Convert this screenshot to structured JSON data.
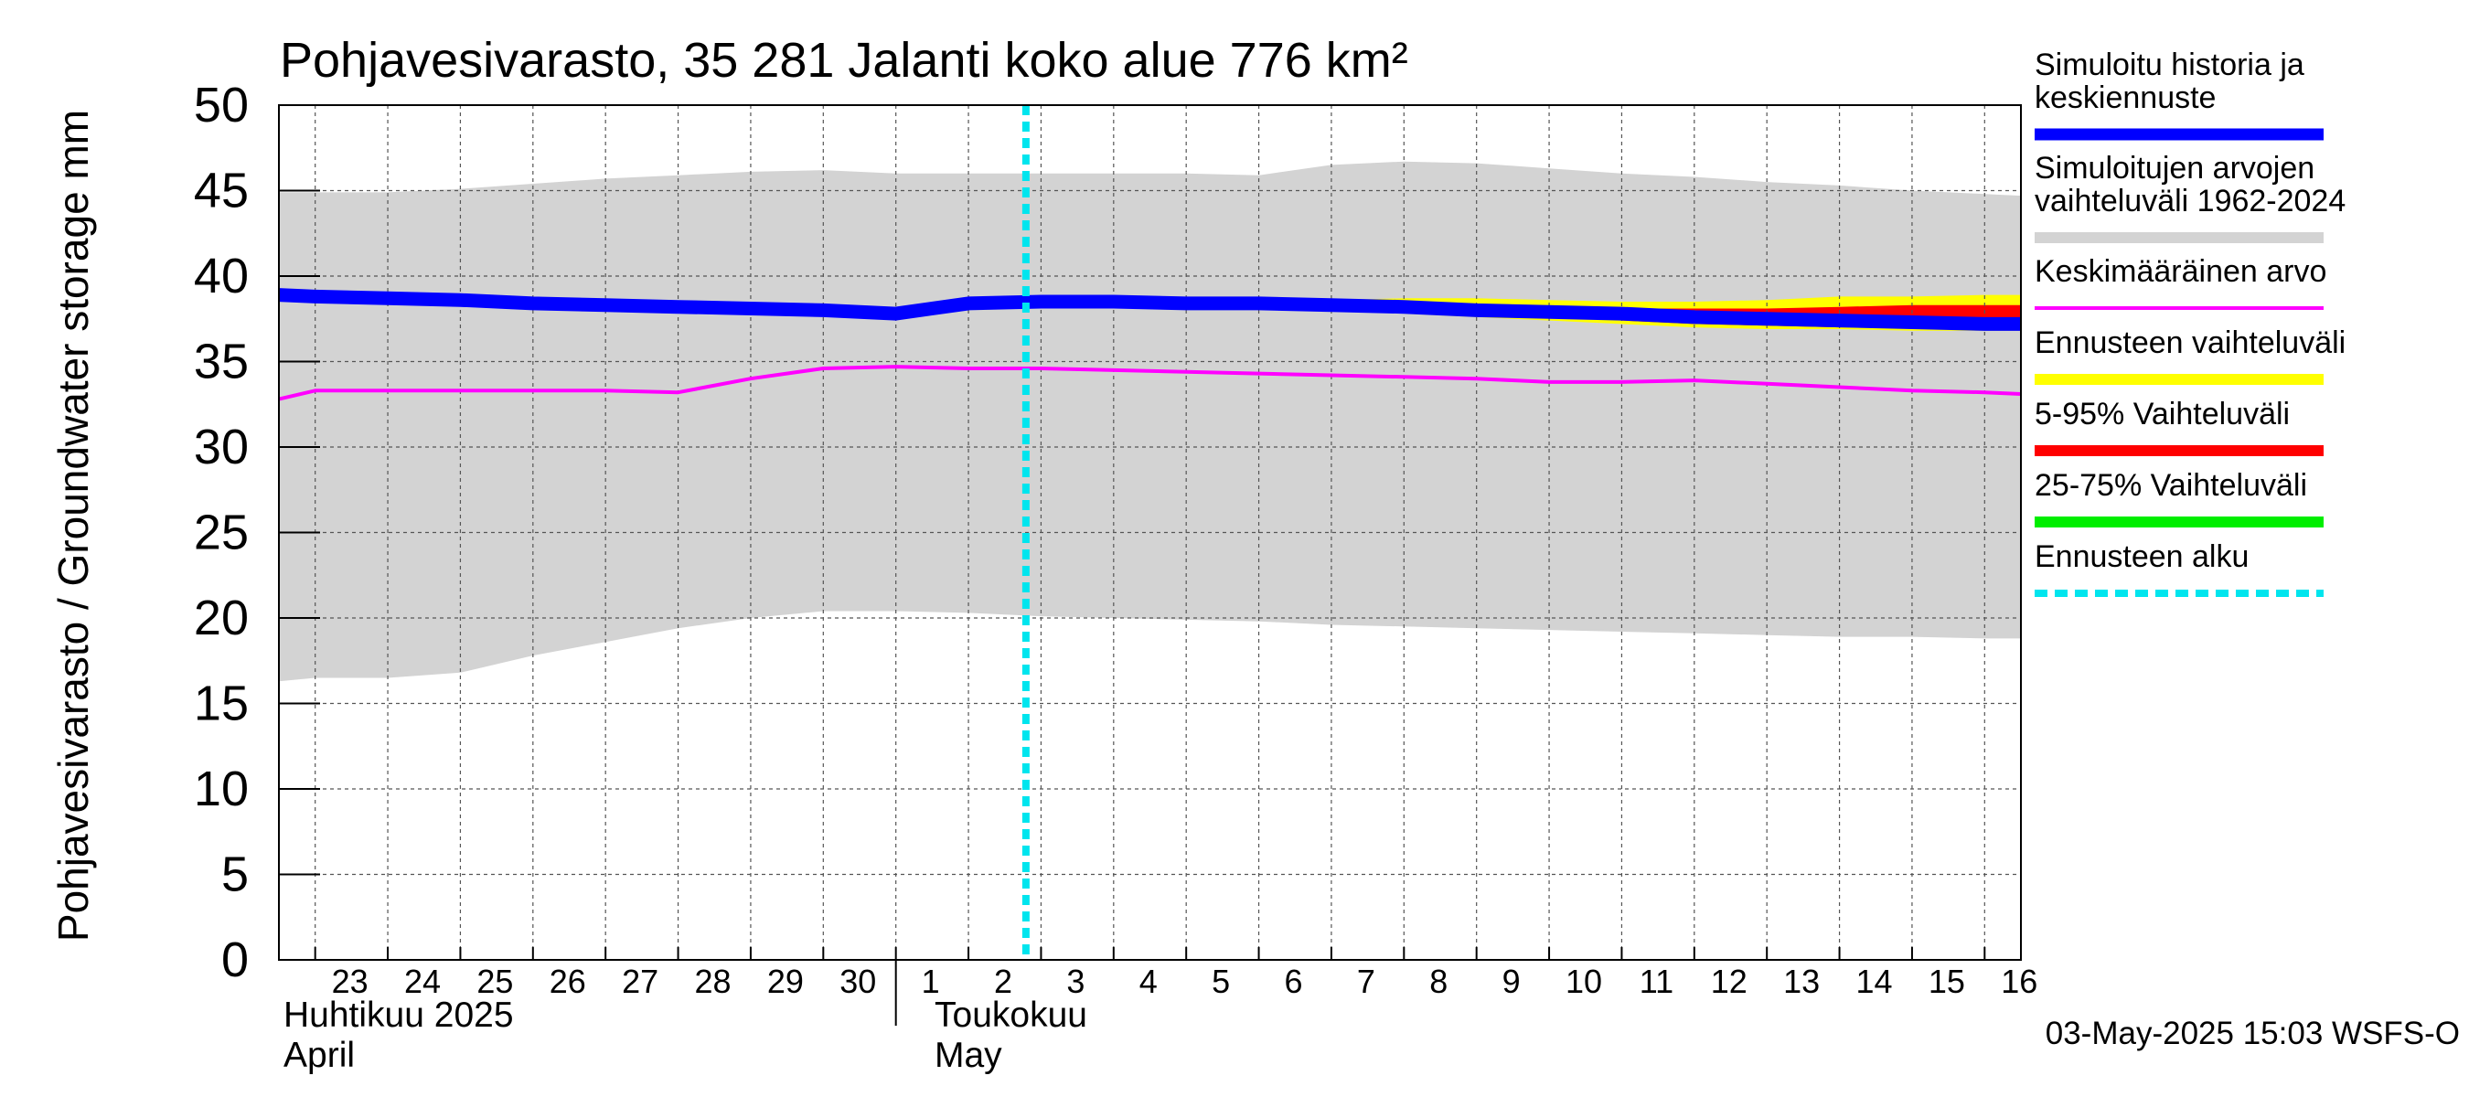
{
  "chart_data": {
    "type": "line",
    "title": "Pohjavesivarasto, 35 281 Jalanti koko alue 776 km²",
    "ylabel": "Pohjavesivarasto / Groundwater storage   mm",
    "ylim": [
      0,
      50
    ],
    "yticks": [
      0,
      5,
      10,
      15,
      20,
      25,
      30,
      35,
      40,
      45,
      50
    ],
    "xlim": [
      "2025-04-22T12:00",
      "2025-05-16T12:00"
    ],
    "xticks": [
      {
        "date": "2025-04-23",
        "label": "23"
      },
      {
        "date": "2025-04-24",
        "label": "24"
      },
      {
        "date": "2025-04-25",
        "label": "25"
      },
      {
        "date": "2025-04-26",
        "label": "26"
      },
      {
        "date": "2025-04-27",
        "label": "27"
      },
      {
        "date": "2025-04-28",
        "label": "28"
      },
      {
        "date": "2025-04-29",
        "label": "29"
      },
      {
        "date": "2025-04-30",
        "label": "30"
      },
      {
        "date": "2025-05-01",
        "label": "1"
      },
      {
        "date": "2025-05-02",
        "label": "2"
      },
      {
        "date": "2025-05-03",
        "label": "3"
      },
      {
        "date": "2025-05-04",
        "label": "4"
      },
      {
        "date": "2025-05-05",
        "label": "5"
      },
      {
        "date": "2025-05-06",
        "label": "6"
      },
      {
        "date": "2025-05-07",
        "label": "7"
      },
      {
        "date": "2025-05-08",
        "label": "8"
      },
      {
        "date": "2025-05-09",
        "label": "9"
      },
      {
        "date": "2025-05-10",
        "label": "10"
      },
      {
        "date": "2025-05-11",
        "label": "11"
      },
      {
        "date": "2025-05-12",
        "label": "12"
      },
      {
        "date": "2025-05-13",
        "label": "13"
      },
      {
        "date": "2025-05-14",
        "label": "14"
      },
      {
        "date": "2025-05-15",
        "label": "15"
      },
      {
        "date": "2025-05-16",
        "label": "16"
      }
    ],
    "month_labels": [
      {
        "line1": "Huhtikuu  2025",
        "line2": "April"
      },
      {
        "line1": "Toukokuu",
        "line2": "May"
      }
    ],
    "month_boundary": "2025-05-01",
    "grid": true,
    "legend_position": "right",
    "series": [
      {
        "name": "Simuloitujen arvojen vaihteluväli 1962-2024",
        "kind": "band",
        "color": "#d3d3d3",
        "dates": [
          "2025-04-22T12:00",
          "2025-04-23",
          "2025-04-24",
          "2025-04-25",
          "2025-04-26",
          "2025-04-27",
          "2025-04-28",
          "2025-04-29",
          "2025-04-30",
          "2025-05-01",
          "2025-05-02",
          "2025-05-03",
          "2025-05-04",
          "2025-05-05",
          "2025-05-06",
          "2025-05-07",
          "2025-05-08",
          "2025-05-09",
          "2025-05-10",
          "2025-05-11",
          "2025-05-12",
          "2025-05-13",
          "2025-05-14",
          "2025-05-15",
          "2025-05-16",
          "2025-05-16T12:00"
        ],
        "upper": [
          44.9,
          44.9,
          44.9,
          45.1,
          45.4,
          45.7,
          45.9,
          46.1,
          46.2,
          46.0,
          46.0,
          46.0,
          46.0,
          46.0,
          45.9,
          46.5,
          46.7,
          46.6,
          46.3,
          46.0,
          45.8,
          45.5,
          45.3,
          45.0,
          44.8,
          44.7
        ],
        "lower": [
          16.3,
          16.5,
          16.5,
          16.8,
          17.8,
          18.6,
          19.4,
          20.0,
          20.4,
          20.4,
          20.3,
          20.1,
          20.0,
          19.9,
          19.8,
          19.6,
          19.5,
          19.4,
          19.3,
          19.2,
          19.1,
          19.0,
          18.9,
          18.9,
          18.8,
          18.8
        ]
      },
      {
        "name": "Ennusteen vaihteluväli",
        "kind": "band",
        "color": "#ffff00",
        "dates": [
          "2025-05-05",
          "2025-05-06",
          "2025-05-07",
          "2025-05-08",
          "2025-05-09",
          "2025-05-10",
          "2025-05-11",
          "2025-05-12",
          "2025-05-13",
          "2025-05-14",
          "2025-05-15",
          "2025-05-16",
          "2025-05-16T12:00"
        ],
        "upper": [
          38.4,
          38.5,
          38.6,
          38.7,
          38.7,
          38.6,
          38.5,
          38.5,
          38.6,
          38.8,
          38.8,
          38.9,
          38.9
        ],
        "lower": [
          38.3,
          38.2,
          38.0,
          37.8,
          37.6,
          37.4,
          37.2,
          37.0,
          36.9,
          36.9,
          36.8,
          36.8,
          36.8
        ]
      },
      {
        "name": "5-95% Vaihteluväli",
        "kind": "band",
        "color": "#ff0000",
        "dates": [
          "2025-05-09",
          "2025-05-10",
          "2025-05-11",
          "2025-05-12",
          "2025-05-13",
          "2025-05-14",
          "2025-05-15",
          "2025-05-16",
          "2025-05-16T12:00"
        ],
        "upper": [
          38.2,
          38.1,
          38.1,
          38.1,
          38.1,
          38.2,
          38.3,
          38.3,
          38.3
        ],
        "lower": [
          38.0,
          37.7,
          37.4,
          37.2,
          37.1,
          37.0,
          37.0,
          36.9,
          36.9
        ]
      },
      {
        "name": "Keskimääräinen arvo",
        "kind": "line",
        "color": "#ff00ff",
        "dates": [
          "2025-04-22T12:00",
          "2025-04-23",
          "2025-04-24",
          "2025-04-25",
          "2025-04-26",
          "2025-04-27",
          "2025-04-28",
          "2025-04-29",
          "2025-04-30",
          "2025-05-01",
          "2025-05-02",
          "2025-05-03",
          "2025-05-04",
          "2025-05-05",
          "2025-05-06",
          "2025-05-07",
          "2025-05-08",
          "2025-05-09",
          "2025-05-10",
          "2025-05-11",
          "2025-05-12",
          "2025-05-13",
          "2025-05-14",
          "2025-05-15",
          "2025-05-16",
          "2025-05-16T12:00"
        ],
        "values": [
          32.8,
          33.3,
          33.3,
          33.3,
          33.3,
          33.3,
          33.2,
          34.0,
          34.6,
          34.7,
          34.6,
          34.6,
          34.5,
          34.4,
          34.3,
          34.2,
          34.1,
          34.0,
          33.8,
          33.8,
          33.9,
          33.7,
          33.5,
          33.3,
          33.2,
          33.1
        ]
      },
      {
        "name": "Simuloitu historia ja keskiennuste",
        "kind": "line",
        "color": "#0000ff",
        "dates": [
          "2025-04-22T12:00",
          "2025-04-23",
          "2025-04-24",
          "2025-04-25",
          "2025-04-26",
          "2025-04-27",
          "2025-04-28",
          "2025-04-29",
          "2025-04-30",
          "2025-05-01",
          "2025-05-02",
          "2025-05-03",
          "2025-05-04",
          "2025-05-05",
          "2025-05-06",
          "2025-05-07",
          "2025-05-08",
          "2025-05-09",
          "2025-05-10",
          "2025-05-11",
          "2025-05-12",
          "2025-05-13",
          "2025-05-14",
          "2025-05-15",
          "2025-05-16",
          "2025-05-16T12:00"
        ],
        "values": [
          38.9,
          38.8,
          38.7,
          38.6,
          38.4,
          38.3,
          38.2,
          38.1,
          38.0,
          37.8,
          38.4,
          38.5,
          38.5,
          38.4,
          38.4,
          38.3,
          38.2,
          38.0,
          37.9,
          37.8,
          37.6,
          37.5,
          37.4,
          37.3,
          37.2,
          37.2
        ]
      },
      {
        "name": "Ennusteen alku",
        "kind": "vline",
        "color": "#00e5ee",
        "date": "2025-05-02T19:00"
      }
    ],
    "legend": [
      {
        "label_lines": [
          "Simuloitu historia ja",
          "keskiennuste"
        ],
        "color": "#0000ff",
        "style": "thick"
      },
      {
        "label_lines": [
          "Simuloitujen arvojen",
          "vaihteluväli 1962-2024"
        ],
        "color": "#d3d3d3",
        "style": "medium"
      },
      {
        "label_lines": [
          "Keskimääräinen arvo"
        ],
        "color": "#ff00ff",
        "style": "thin"
      },
      {
        "label_lines": [
          "Ennusteen vaihteluväli"
        ],
        "color": "#ffff00",
        "style": "medium"
      },
      {
        "label_lines": [
          "5-95% Vaihteluväli"
        ],
        "color": "#ff0000",
        "style": "medium"
      },
      {
        "label_lines": [
          "25-75% Vaihteluväli"
        ],
        "color": "#00ee00",
        "style": "medium"
      },
      {
        "label_lines": [
          "Ennusteen alku"
        ],
        "color": "#00e5ee",
        "style": "dashed"
      }
    ],
    "footer": "03-May-2025 15:03 WSFS-O"
  }
}
